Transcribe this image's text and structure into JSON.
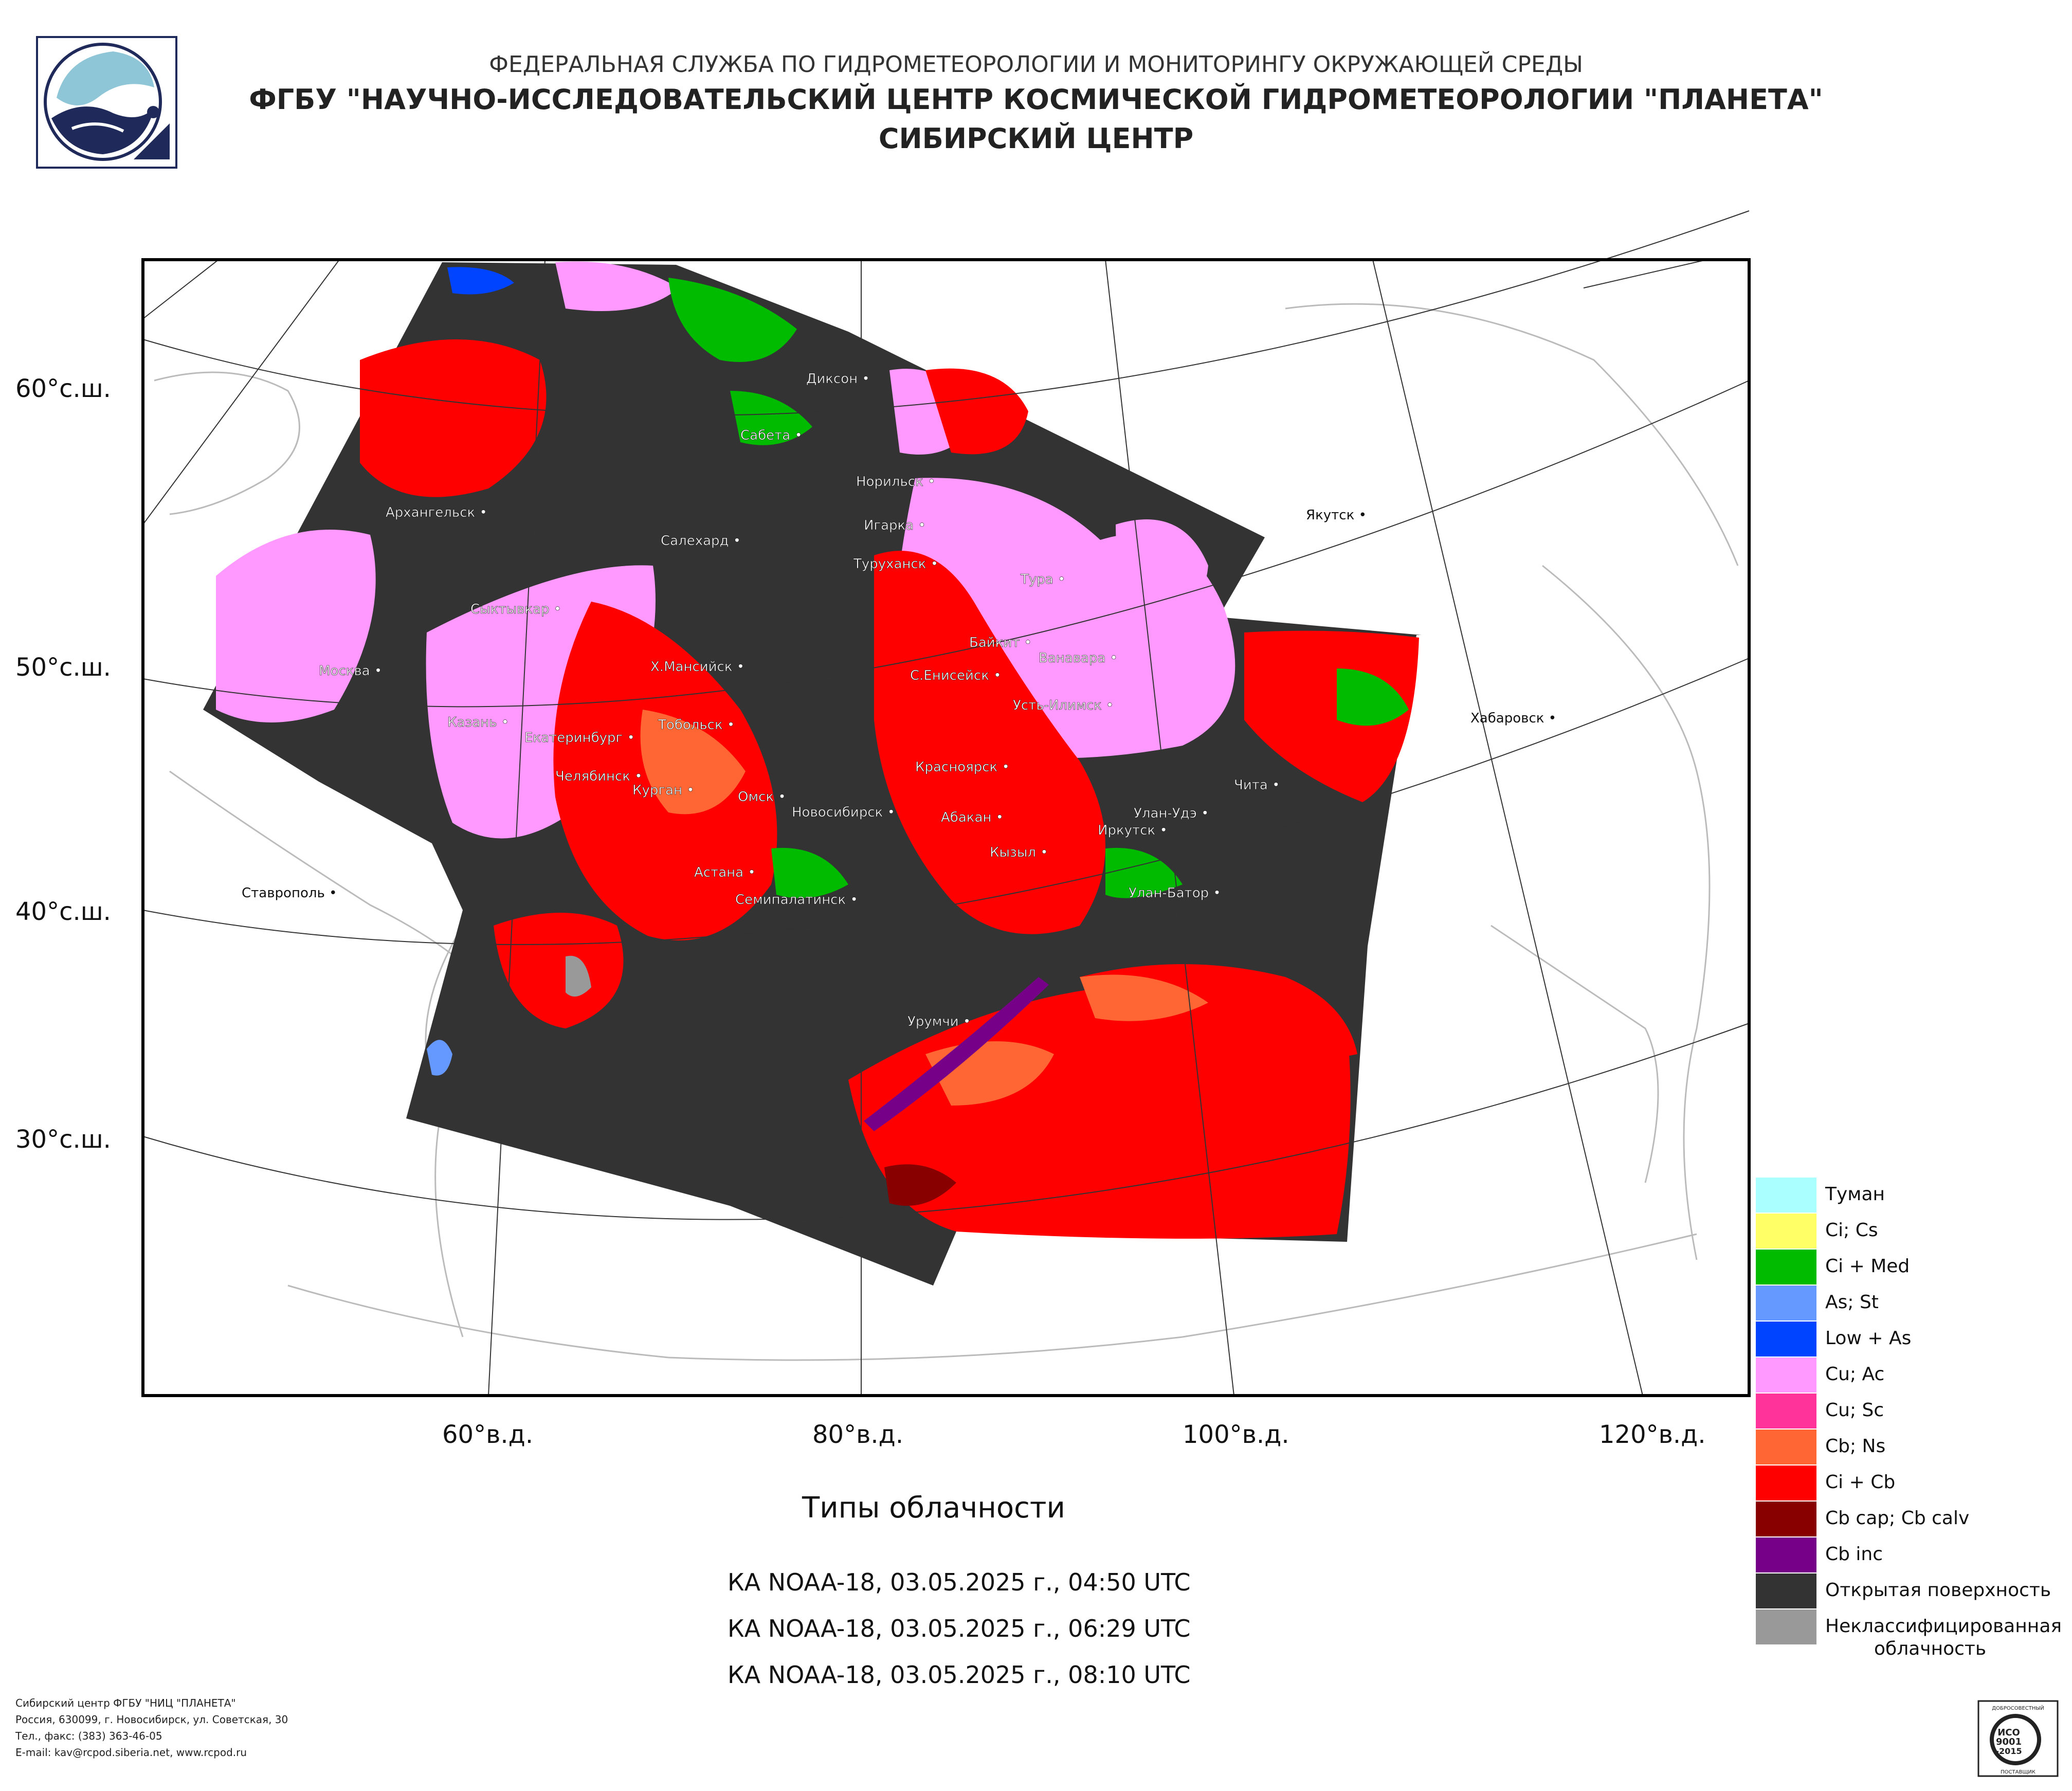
{
  "header": {
    "line1": "ФЕДЕРАЛЬНАЯ СЛУЖБА ПО ГИДРОМЕТЕОРОЛОГИИ И МОНИТОРИНГУ ОКРУЖАЮЩЕЙ СРЕДЫ",
    "line2": "ФГБУ \"НАУЧНО-ИССЛЕДОВАТЕЛЬСКИЙ ЦЕНТР КОСМИЧЕСКОЙ ГИДРОМЕТЕОРОЛОГИИ \"ПЛАНЕТА\"",
    "line3": "СИБИРСКИЙ ЦЕНТР"
  },
  "map": {
    "latitude_labels": [
      "60°с.ш.",
      "50°с.ш.",
      "40°с.ш.",
      "30°с.ш."
    ],
    "longitude_labels": [
      "60°в.д.",
      "80°в.д.",
      "100°в.д.",
      "120°в.д."
    ],
    "cities": [
      "Диксон",
      "Сабета",
      "Норильск",
      "Игарка",
      "Туруханск",
      "Салехард",
      "Архангельск",
      "Якутск",
      "Тура",
      "Сыктывкар",
      "Байкит",
      "Ванавара",
      "С.Енисейск",
      "Х.Мансийск",
      "Москва",
      "Усть-Илимск",
      "Хабаровск",
      "Казань",
      "Тобольск",
      "Екатеринбург",
      "Красноярск",
      "Челябинск",
      "Курган",
      "Омск",
      "Новосибирск",
      "Чита",
      "Улан-Удэ",
      "Абакан",
      "Иркутск",
      "Кызыл",
      "Астана",
      "Ставрополь",
      "Улан-Батор",
      "Семипалатинск",
      "Урумчи"
    ]
  },
  "caption": "Типы облачности",
  "passes": [
    "КА NOAA-18, 03.05.2025 г., 04:50 UTC",
    "КА NOAA-18, 03.05.2025 г., 06:29 UTC",
    "КА NOAA-18, 03.05.2025 г., 08:10 UTC"
  ],
  "legend": [
    {
      "label": "Туман",
      "color": "#aaffff"
    },
    {
      "label": "Ci; Cs",
      "color": "#ffff66"
    },
    {
      "label": "Ci + Med",
      "color": "#00bb00"
    },
    {
      "label": "As; St",
      "color": "#6699ff"
    },
    {
      "label": "Low + As",
      "color": "#0044ff"
    },
    {
      "label": "Cu; Ac",
      "color": "#ff99ff"
    },
    {
      "label": "Cu; Sc",
      "color": "#ff3399"
    },
    {
      "label": "Cb; Ns",
      "color": "#ff6633"
    },
    {
      "label": "Ci + Cb",
      "color": "#ff0000"
    },
    {
      "label": "Cb cap; Cb calv",
      "color": "#880000"
    },
    {
      "label": "Cb inc",
      "color": "#770088"
    },
    {
      "label": "Открытая поверхность",
      "color": "#333333"
    },
    {
      "label": "Неклассифицированная",
      "label2": "облачность",
      "color": "#999999"
    }
  ],
  "footer": {
    "line1": "Сибирский центр ФГБУ \"НИЦ \"ПЛАНЕТА\"",
    "line2": "Россия, 630099, г. Новосибирск, ул. Советская, 30",
    "line3": "Тел., факс: (383) 363-46-05",
    "line4": "E-mail: kav@rcpod.siberia.net, www.rcpod.ru"
  },
  "iso_badge": {
    "top": "ДОБРОСОВЕСТНЫЙ",
    "mid1": "ИСО",
    "mid2": "9001",
    "mid3": "-2015",
    "bottom": "ПОСТАВЩИК"
  }
}
